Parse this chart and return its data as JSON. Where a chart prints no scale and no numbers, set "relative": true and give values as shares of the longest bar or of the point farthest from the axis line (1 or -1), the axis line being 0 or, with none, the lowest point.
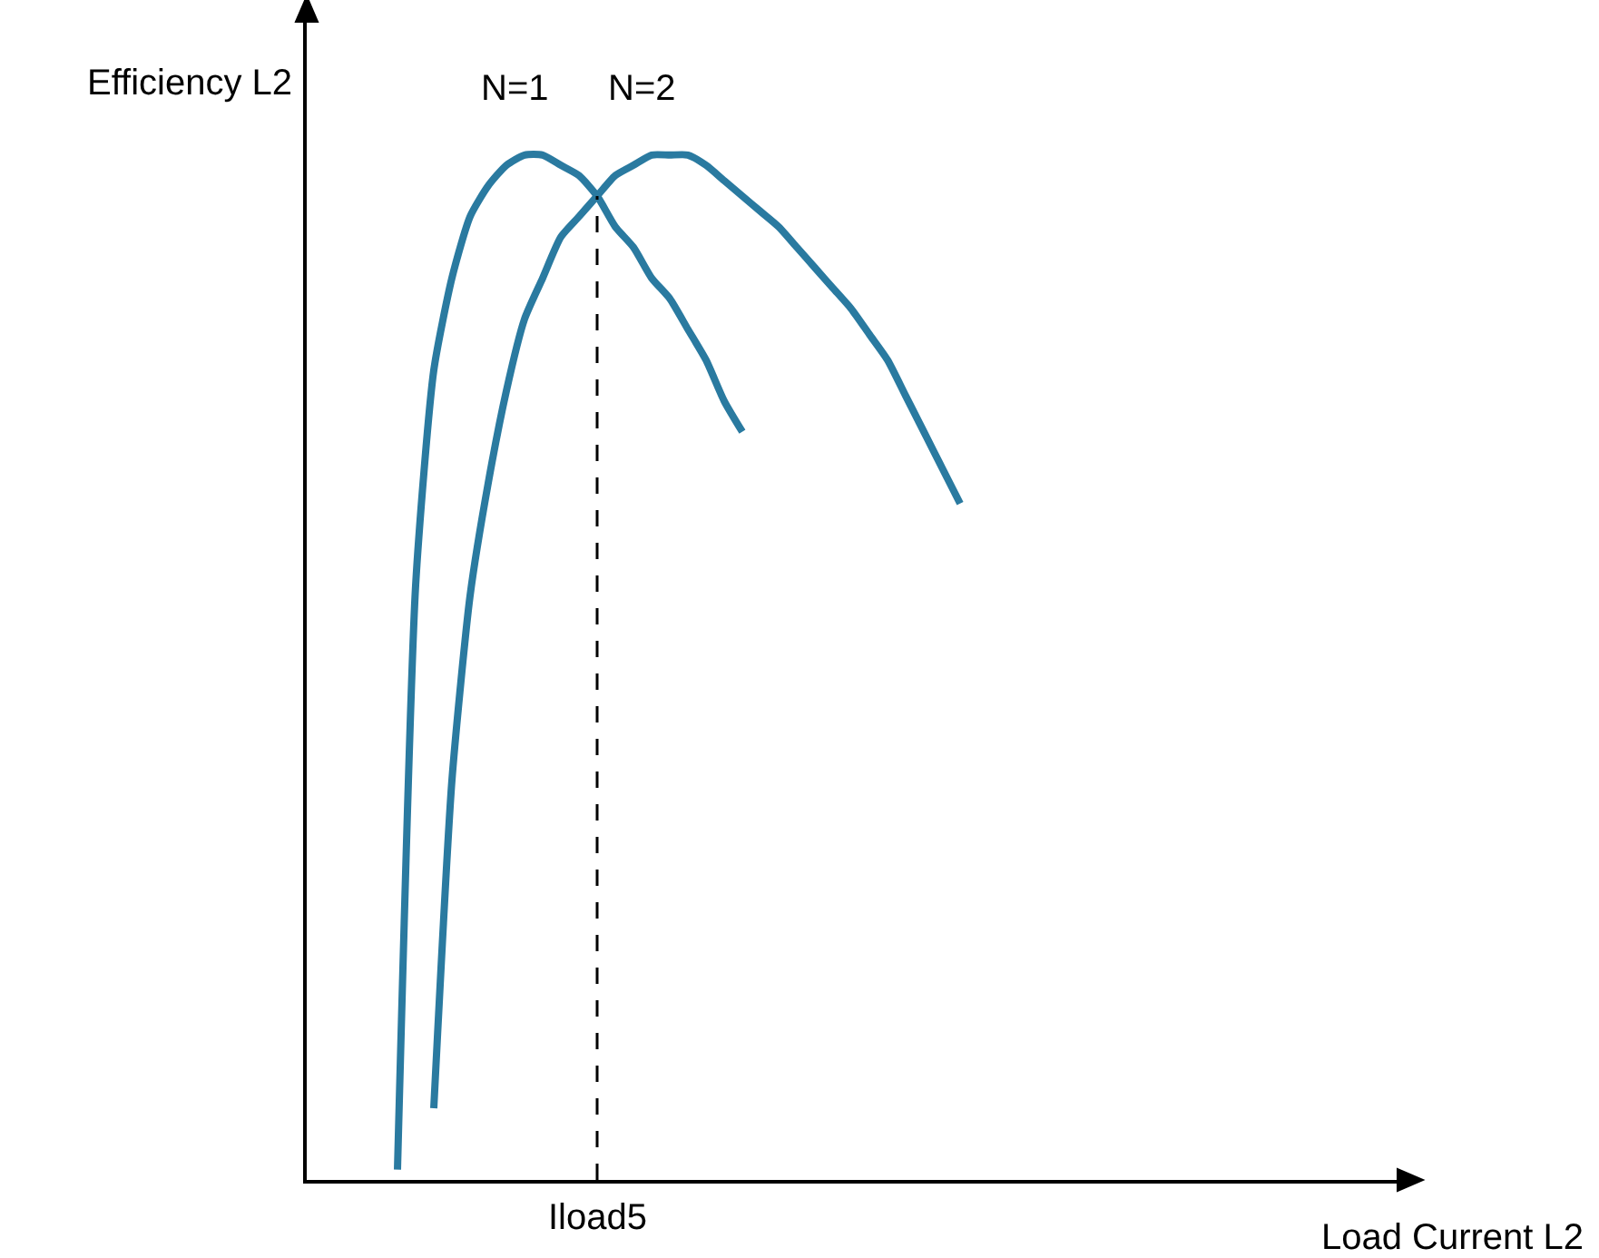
{
  "chart_data": {
    "type": "line",
    "relative": true,
    "xlabel": "Load Current L2",
    "ylabel": "Efficiency L2",
    "marker": "none",
    "line_style": "solid",
    "annotations": [
      "Iload5"
    ],
    "categories": [
      null,
      null,
      null,
      null,
      null,
      null,
      null,
      null,
      null,
      null,
      null,
      null,
      null,
      null,
      null,
      null,
      null,
      null,
      null,
      null,
      null,
      null,
      null,
      null,
      null,
      null,
      null,
      null,
      null,
      null,
      null,
      null,
      null,
      null,
      null,
      null,
      null,
      null,
      null,
      null,
      null,
      null,
      null,
      null,
      null,
      null,
      null,
      null,
      null,
      null,
      null,
      null,
      null,
      null,
      null,
      null,
      null,
      null,
      null,
      null
    ],
    "series": [
      {
        "name": "N=1",
        "color": "#2a7aa0",
        "values": [
          null,
          null,
          null,
          null,
          null,
          0.01,
          0.58,
          0.79,
          0.88,
          0.94,
          0.97,
          0.99,
          1.0,
          1.0,
          0.99,
          0.98,
          0.96,
          0.93,
          0.91,
          0.88,
          0.86,
          0.83,
          0.8,
          0.76,
          0.73,
          null,
          null,
          null,
          null,
          null,
          null,
          null,
          null,
          null,
          null,
          null,
          null,
          null,
          null,
          null,
          null,
          null,
          null,
          null,
          null,
          null,
          null,
          null,
          null,
          null,
          null,
          null,
          null,
          null,
          null,
          null,
          null,
          null,
          null,
          null
        ]
      },
      {
        "name": "N=2",
        "color": "#2a7aa0",
        "values": [
          null,
          null,
          null,
          null,
          null,
          null,
          null,
          0.07,
          0.39,
          0.57,
          0.68,
          0.77,
          0.84,
          0.88,
          0.92,
          0.94,
          0.96,
          0.98,
          0.99,
          1.0,
          1.0,
          1.0,
          0.99,
          0.975,
          0.96,
          0.945,
          0.93,
          0.91,
          0.89,
          0.87,
          0.85,
          0.825,
          0.8,
          0.765,
          0.73,
          0.695,
          0.66,
          null,
          null,
          null,
          null,
          null,
          null,
          null,
          null,
          null,
          null,
          null,
          null,
          null,
          null,
          null,
          null,
          null,
          null,
          null,
          null,
          null,
          null,
          null
        ]
      }
    ]
  }
}
